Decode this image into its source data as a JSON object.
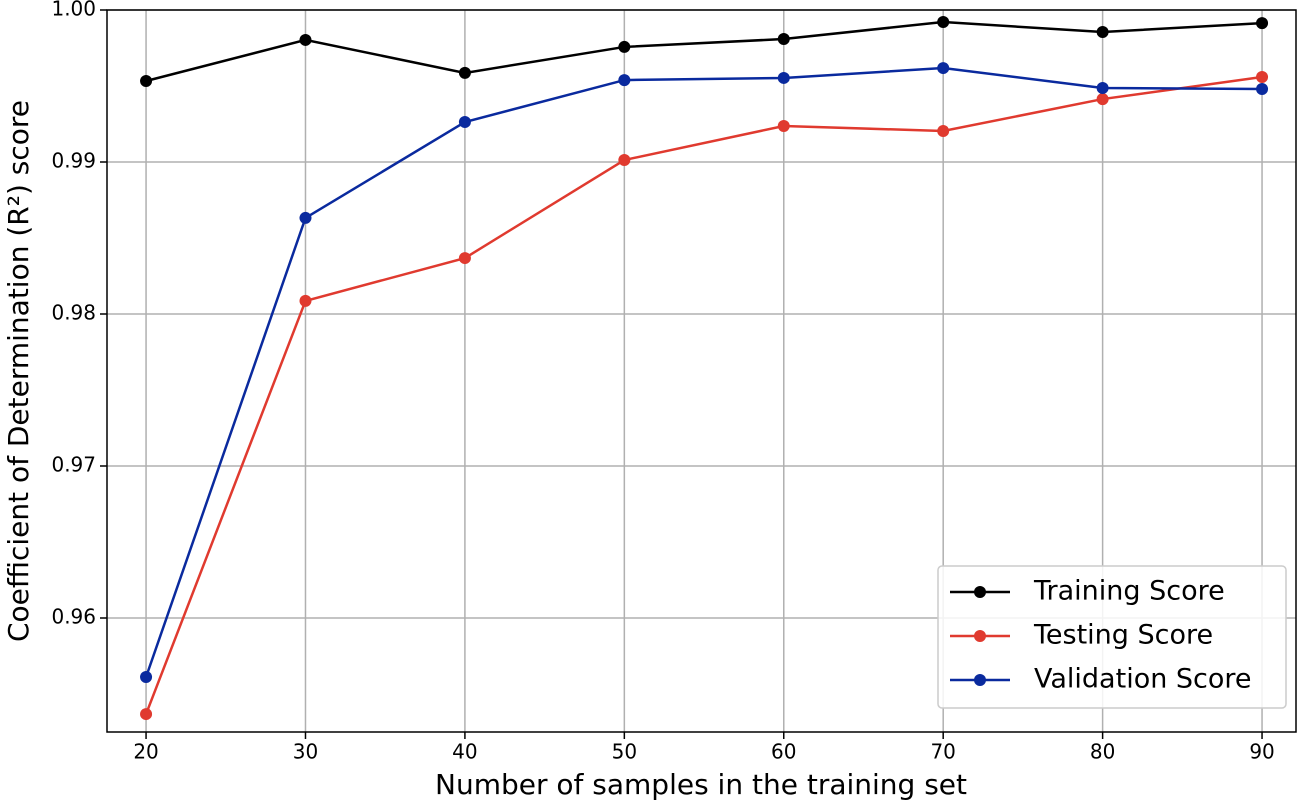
{
  "chart_data": {
    "type": "line",
    "xlabel": "Number of samples in the training set",
    "ylabel": "Coefficient of Determination (R²) score",
    "x": [
      20,
      30,
      40,
      50,
      60,
      70,
      80,
      90
    ],
    "series": [
      {
        "name": "Training Score",
        "color": "#000000",
        "values": [
          0.99533,
          0.99803,
          0.99586,
          0.99757,
          0.99809,
          0.99921,
          0.99855,
          0.99914
        ]
      },
      {
        "name": "Testing Score",
        "color": "#e03a2f",
        "values": [
          0.95368,
          0.98086,
          0.98368,
          0.99013,
          0.99237,
          0.99204,
          0.99414,
          0.99559
        ]
      },
      {
        "name": "Validation Score",
        "color": "#0a2a9e",
        "values": [
          0.95612,
          0.98632,
          0.99263,
          0.99539,
          0.99553,
          0.99618,
          0.99487,
          0.9948
        ]
      }
    ],
    "xlim": [
      17.55,
      92.13
    ],
    "ylim": [
      0.9525,
      1.0
    ],
    "xticks": [
      20,
      30,
      40,
      50,
      60,
      70,
      80,
      90
    ],
    "yticks": [
      0.96,
      0.97,
      0.98,
      0.99,
      {
        "value": 1.0,
        "label": "1.00"
      }
    ],
    "grid": true,
    "legend": "lower right"
  }
}
